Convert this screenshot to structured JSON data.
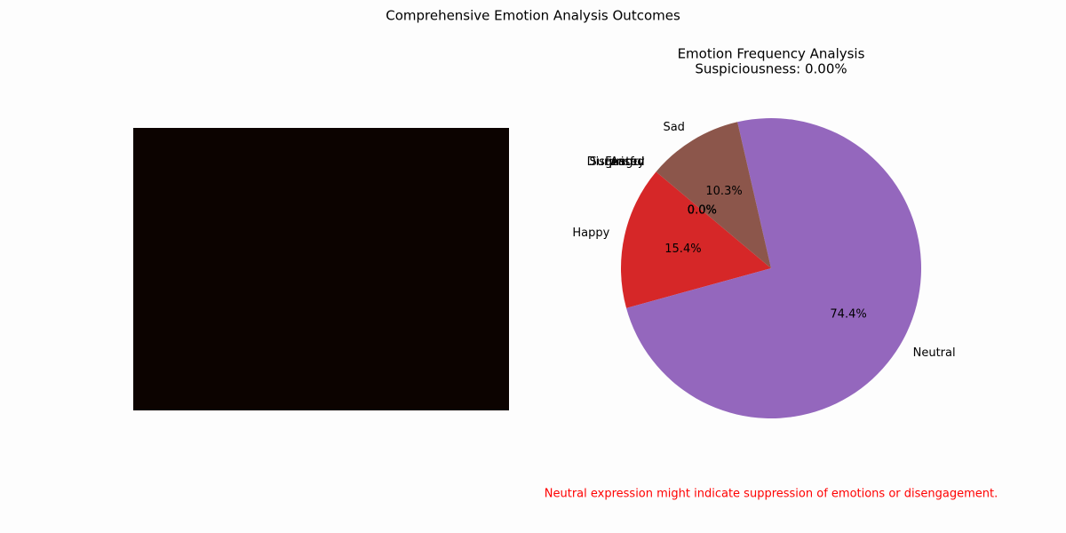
{
  "figure_title": "Comprehensive Emotion Analysis Outcomes",
  "chart_data": {
    "type": "pie",
    "title": "Emotion Frequency Analysis",
    "subtitle": "Suspiciousness: 0.00%",
    "categories": [
      "Angry",
      "Disgusted",
      "Fearful",
      "Happy",
      "Neutral",
      "Sad",
      "Surprised"
    ],
    "values": [
      0.0,
      0.0,
      0.0,
      15.4,
      74.4,
      10.3,
      0.0
    ],
    "value_labels": [
      "0.0%",
      "0.0%",
      "0.0%",
      "15.4%",
      "74.4%",
      "10.3%",
      "0.0%"
    ],
    "colors": [
      "#1f77b4",
      "#ff7f0e",
      "#2ca02c",
      "#d62728",
      "#9467bd",
      "#8c564b",
      "#e377c2"
    ]
  },
  "note": "Neutral expression might indicate suppression of emotions or disengagement."
}
